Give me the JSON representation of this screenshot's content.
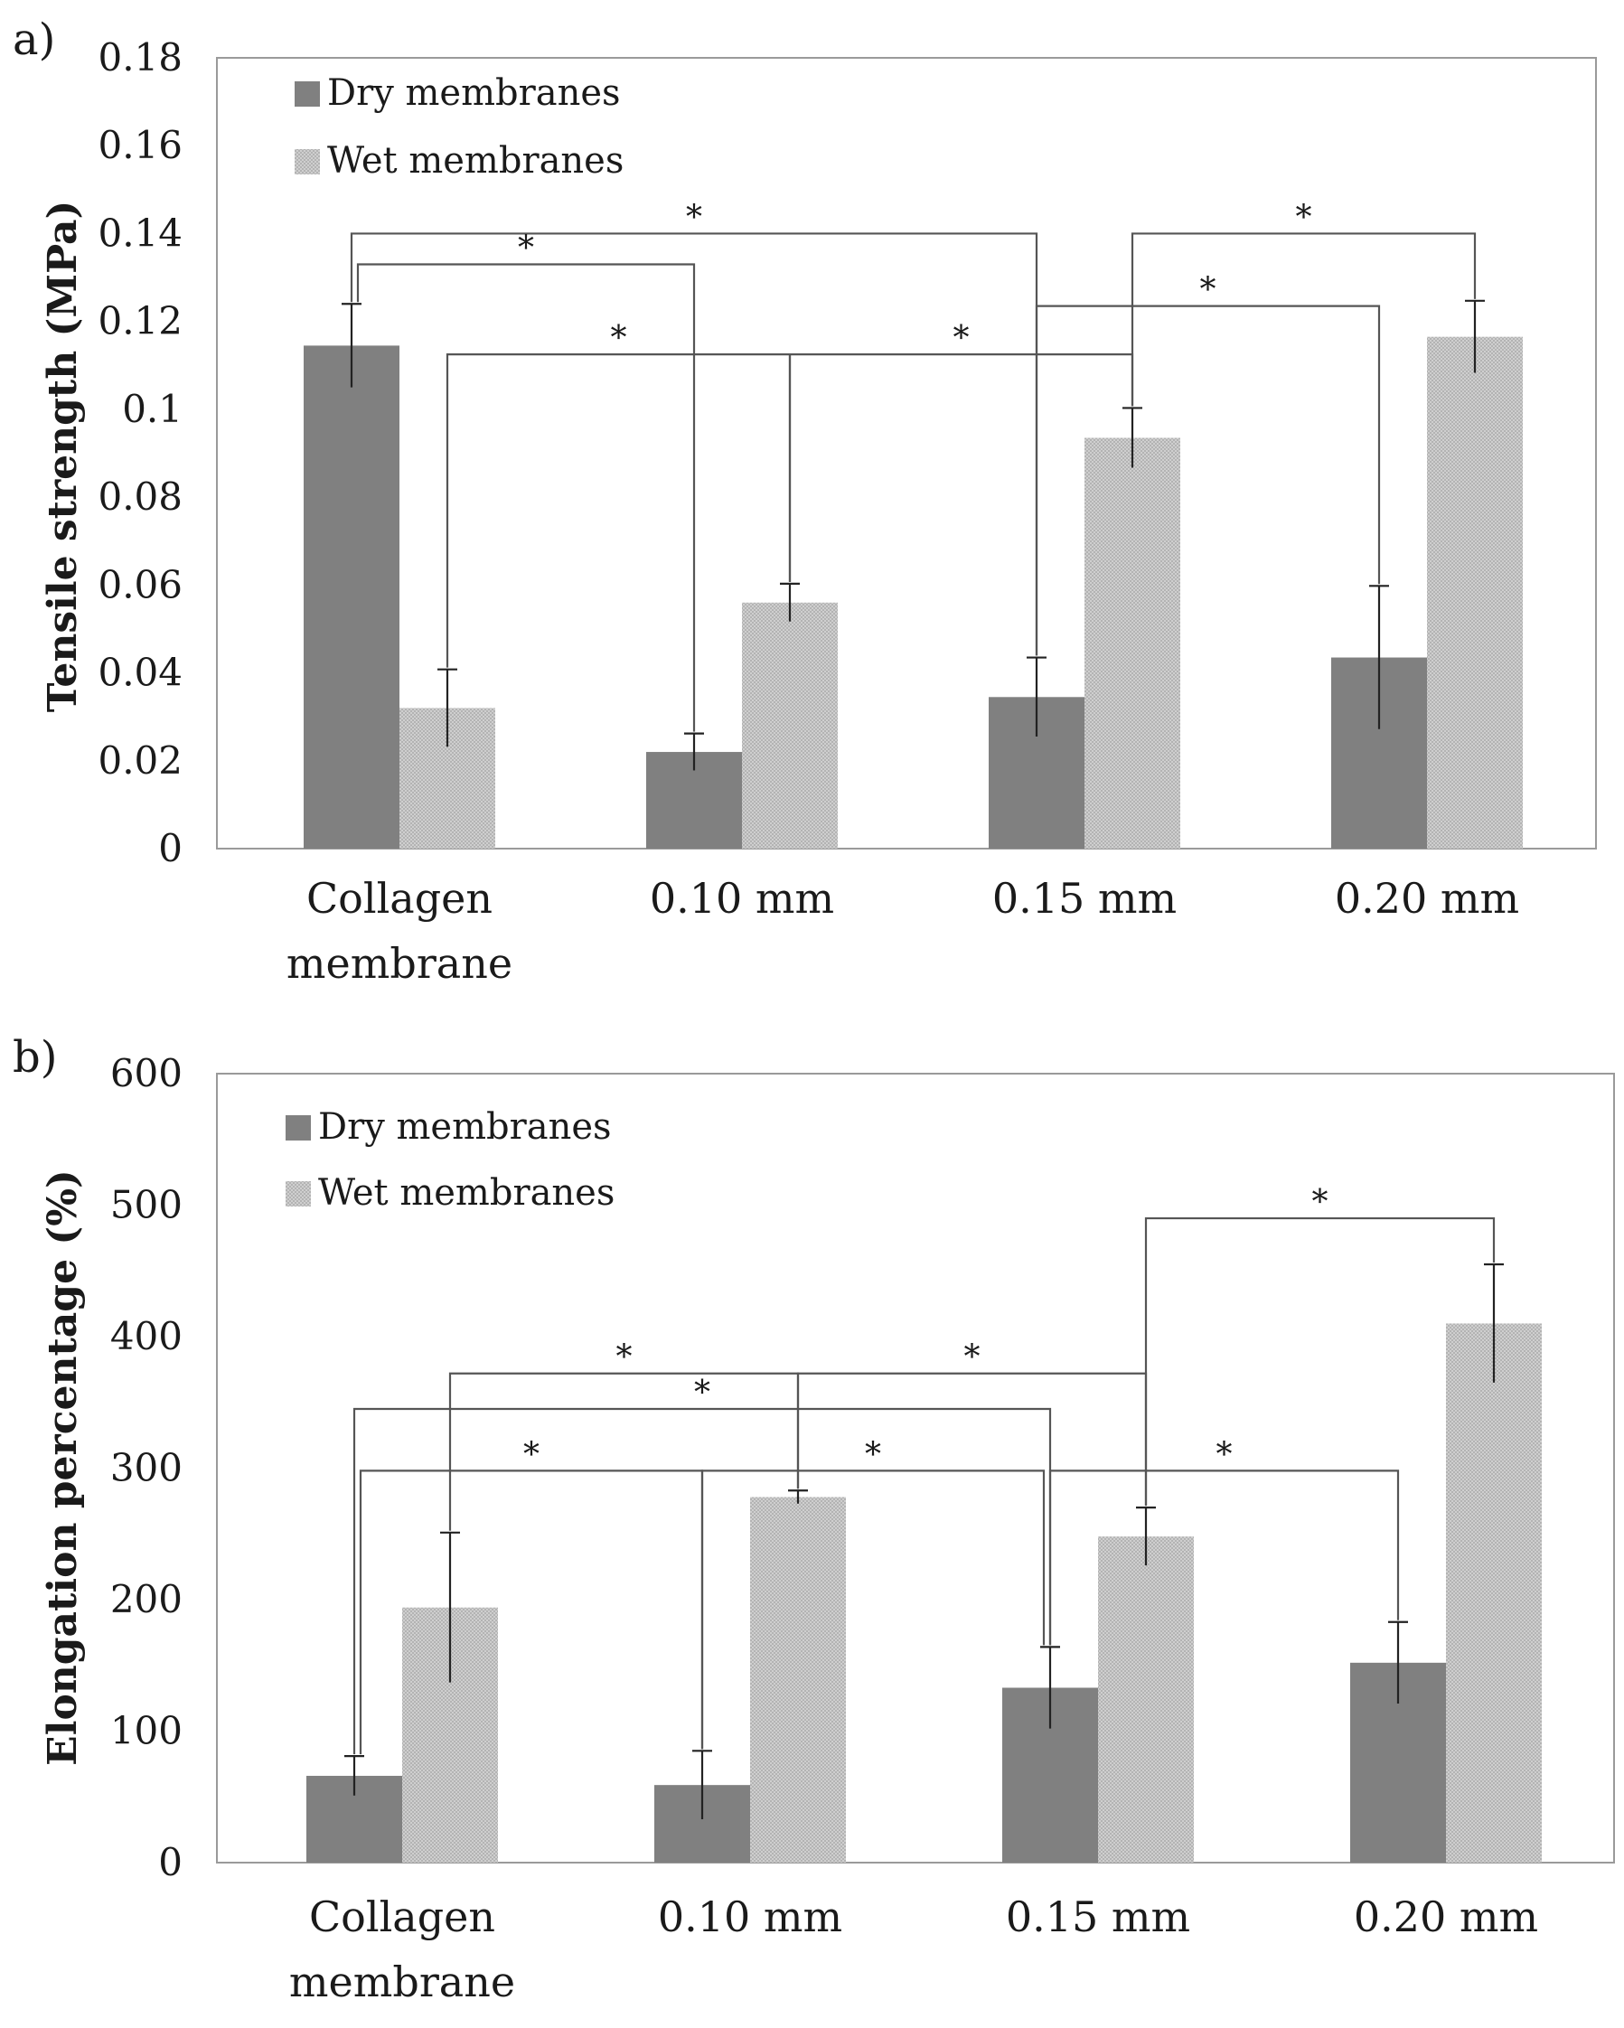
{
  "chart_data": [
    {
      "id": "a",
      "type": "bar",
      "panel_label": "a)",
      "ylabel": "Tensile strength (MPa)",
      "xlabel": "",
      "ylim": [
        0,
        0.18
      ],
      "yticks": [
        "0",
        "0.02",
        "0.04",
        "0.06",
        "0.08",
        "0.1",
        "0.12",
        "0.14",
        "0.16",
        "0.18"
      ],
      "categories": [
        [
          "Collagen",
          "membrane"
        ],
        [
          "0.10 mm"
        ],
        [
          "0.15 mm"
        ],
        [
          "0.20 mm"
        ]
      ],
      "legend": [
        "Dry membranes",
        "Wet membranes"
      ],
      "legend_position": "top-left",
      "series": [
        {
          "name": "Dry membranes",
          "color": "#808080",
          "values": [
            0.1145,
            0.022,
            0.0345,
            0.0435
          ],
          "errors": [
            0.0095,
            0.0042,
            0.009,
            0.0163
          ]
        },
        {
          "name": "Wet membranes",
          "color": "#c6c6c6",
          "values": [
            0.032,
            0.056,
            0.0935,
            0.1165
          ],
          "errors": [
            0.0088,
            0.0043,
            0.0068,
            0.0082
          ]
        }
      ],
      "significance": [
        {
          "from": [
            0,
            0
          ],
          "to": [
            2,
            0
          ],
          "level": 0.14,
          "label": "*"
        },
        {
          "from": [
            0,
            0
          ],
          "to": [
            1,
            0
          ],
          "level": 0.133,
          "label": "*"
        },
        {
          "from": [
            0,
            1
          ],
          "to": [
            1,
            1
          ],
          "level": 0.1125,
          "label": "*"
        },
        {
          "from": [
            1,
            1
          ],
          "to": [
            2,
            1
          ],
          "level": 0.1125,
          "label": "*"
        },
        {
          "from": [
            2,
            1
          ],
          "to": [
            3,
            1
          ],
          "level": 0.14,
          "label": "*"
        },
        {
          "from": [
            2,
            0
          ],
          "to": [
            3,
            0
          ],
          "level": 0.1235,
          "label": "*"
        }
      ]
    },
    {
      "id": "b",
      "type": "bar",
      "panel_label": "b)",
      "ylabel": "Elongation percentage (%)",
      "xlabel": "",
      "ylim": [
        0,
        600
      ],
      "yticks": [
        "0",
        "100",
        "200",
        "300",
        "400",
        "500",
        "600"
      ],
      "categories": [
        [
          "Collagen",
          "membrane"
        ],
        [
          "0.10 mm"
        ],
        [
          "0.15 mm"
        ],
        [
          "0.20 mm"
        ]
      ],
      "legend": [
        "Dry membranes",
        "Wet membranes"
      ],
      "legend_position": "top-left",
      "series": [
        {
          "name": "Dry membranes",
          "color": "#808080",
          "values": [
            66,
            59,
            133,
            152
          ],
          "errors": [
            15,
            26,
            31,
            31
          ]
        },
        {
          "name": "Wet membranes",
          "color": "#c6c6c6",
          "values": [
            194,
            278,
            248,
            410
          ],
          "errors": [
            57,
            5,
            22,
            45
          ]
        }
      ],
      "significance": [
        {
          "from": [
            0,
            0
          ],
          "to": [
            2,
            0
          ],
          "level": 345,
          "label": "*"
        },
        {
          "from": [
            0,
            0
          ],
          "to": [
            1,
            0
          ],
          "level": 298,
          "label": "*"
        },
        {
          "from": [
            1,
            0
          ],
          "to": [
            2,
            0
          ],
          "level": 298,
          "label": "*"
        },
        {
          "from": [
            0,
            1
          ],
          "to": [
            1,
            1
          ],
          "level": 372,
          "label": "*"
        },
        {
          "from": [
            1,
            1
          ],
          "to": [
            2,
            1
          ],
          "level": 372,
          "label": "*"
        },
        {
          "from": [
            2,
            0
          ],
          "to": [
            3,
            0
          ],
          "level": 298,
          "label": "*"
        },
        {
          "from": [
            2,
            1
          ],
          "to": [
            3,
            1
          ],
          "level": 490,
          "label": "*"
        }
      ]
    }
  ]
}
